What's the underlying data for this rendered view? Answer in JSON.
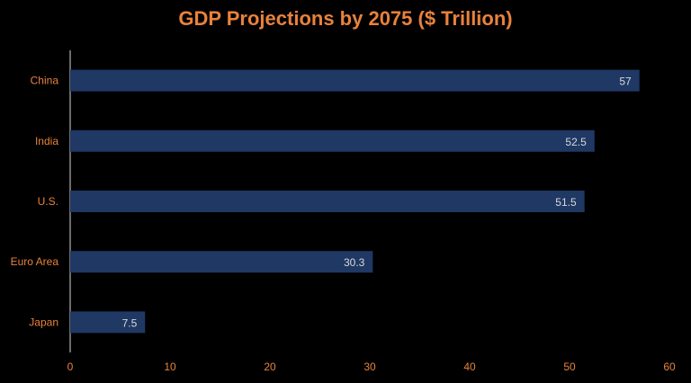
{
  "colors": {
    "background": "#000000",
    "title": "#E8823C",
    "axis_text": "#E8823C",
    "bar": "#1F3864",
    "data_label": "#D9D9D9",
    "axis_line": "#D9D9D9"
  },
  "chart_data": {
    "type": "bar",
    "orientation": "horizontal",
    "title": "GDP Projections by 2075 ($ Trillion)",
    "categories": [
      "China",
      "India",
      "U.S.",
      "Euro Area",
      "Japan"
    ],
    "values": [
      57,
      52.5,
      51.5,
      30.3,
      7.5
    ],
    "data_labels": [
      "57",
      "52.5",
      "51.5",
      "30.3",
      "7.5"
    ],
    "xlim": [
      0,
      60
    ],
    "x_ticks": [
      0,
      10,
      20,
      30,
      40,
      50,
      60
    ],
    "xlabel": "",
    "ylabel": "",
    "grid": false,
    "legend": "none"
  }
}
